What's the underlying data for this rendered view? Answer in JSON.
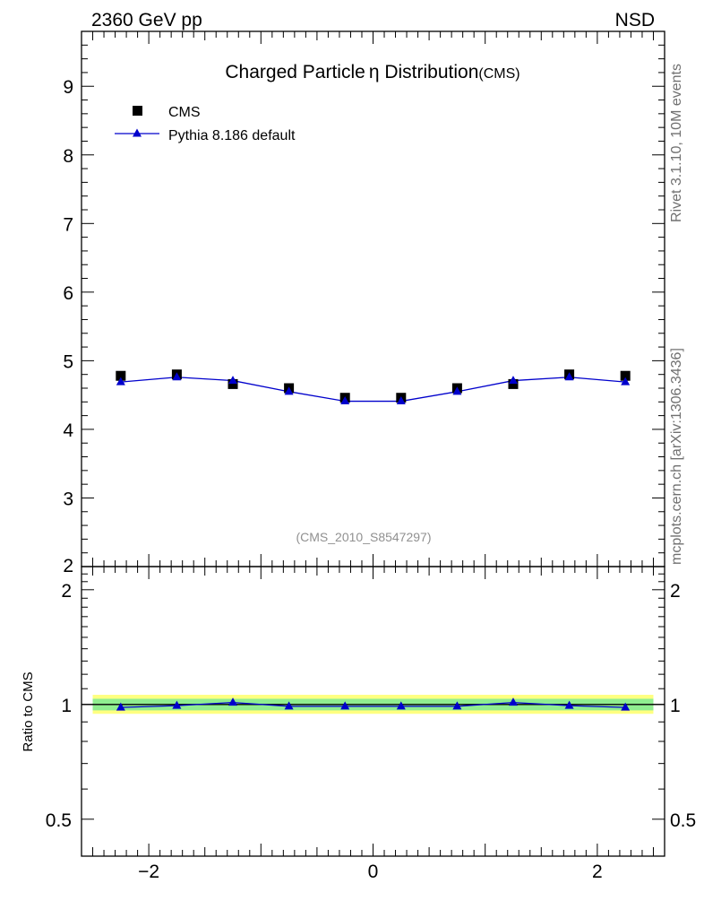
{
  "header": {
    "left": "2360 GeV pp",
    "right": "NSD"
  },
  "side_labels": {
    "rivet": "Rivet 3.1.10,  10M events",
    "source": "mcplots.cern.ch [arXiv:1306.3436]"
  },
  "chart_data": [
    {
      "type": "scatter",
      "title_main": "Charged Particle",
      "title_symbol": "η",
      "title_rest": " Distribution",
      "title_suffix": "(CMS)",
      "watermark": "(CMS_2010_S8547297)",
      "xlim": [
        -2.6,
        2.6
      ],
      "ylim": [
        2,
        9.8
      ],
      "yticks": [
        "3",
        "4",
        "5",
        "6",
        "7",
        "8",
        "9"
      ],
      "ytick_values": [
        3,
        4,
        5,
        6,
        7,
        8,
        9
      ],
      "partial_tick_label": "2",
      "legend": {
        "position": "top-left"
      },
      "series": [
        {
          "name": "CMS",
          "marker": "square",
          "color": "#000000",
          "x": [
            -2.25,
            -1.75,
            -1.25,
            -0.75,
            -0.25,
            0.25,
            0.75,
            1.25,
            1.75,
            2.25
          ],
          "y": [
            4.78,
            4.8,
            4.66,
            4.6,
            4.46,
            4.46,
            4.6,
            4.66,
            4.8,
            4.78
          ]
        },
        {
          "name": "Pythia 8.186 default",
          "marker": "triangle",
          "color": "#0000cc",
          "x": [
            -2.25,
            -1.75,
            -1.25,
            -0.75,
            -0.25,
            0.25,
            0.75,
            1.25,
            1.75,
            2.25
          ],
          "y": [
            4.69,
            4.76,
            4.71,
            4.55,
            4.41,
            4.41,
            4.55,
            4.71,
            4.76,
            4.69
          ]
        }
      ]
    },
    {
      "type": "line",
      "ylabel": "Ratio to CMS",
      "xlim": [
        -2.6,
        2.6
      ],
      "ylim": [
        0.4,
        2.3
      ],
      "log_scale_y": true,
      "xticks": [
        "−2",
        "0",
        "2"
      ],
      "xtick_values": [
        -2,
        0,
        2
      ],
      "yticks": [
        "0.5",
        "1",
        "2"
      ],
      "ytick_values": [
        0.5,
        1,
        2
      ],
      "band_yellow": [
        0.945,
        1.06
      ],
      "band_green": [
        0.965,
        1.035
      ],
      "series": [
        {
          "name": "Pythia 8.186 default",
          "color": "#0000cc",
          "x": [
            -2.25,
            -1.75,
            -1.25,
            -0.75,
            -0.25,
            0.25,
            0.75,
            1.25,
            1.75,
            2.25
          ],
          "y": [
            0.982,
            0.993,
            1.012,
            0.989,
            0.989,
            0.989,
            0.989,
            1.012,
            0.993,
            0.982
          ]
        }
      ]
    }
  ]
}
